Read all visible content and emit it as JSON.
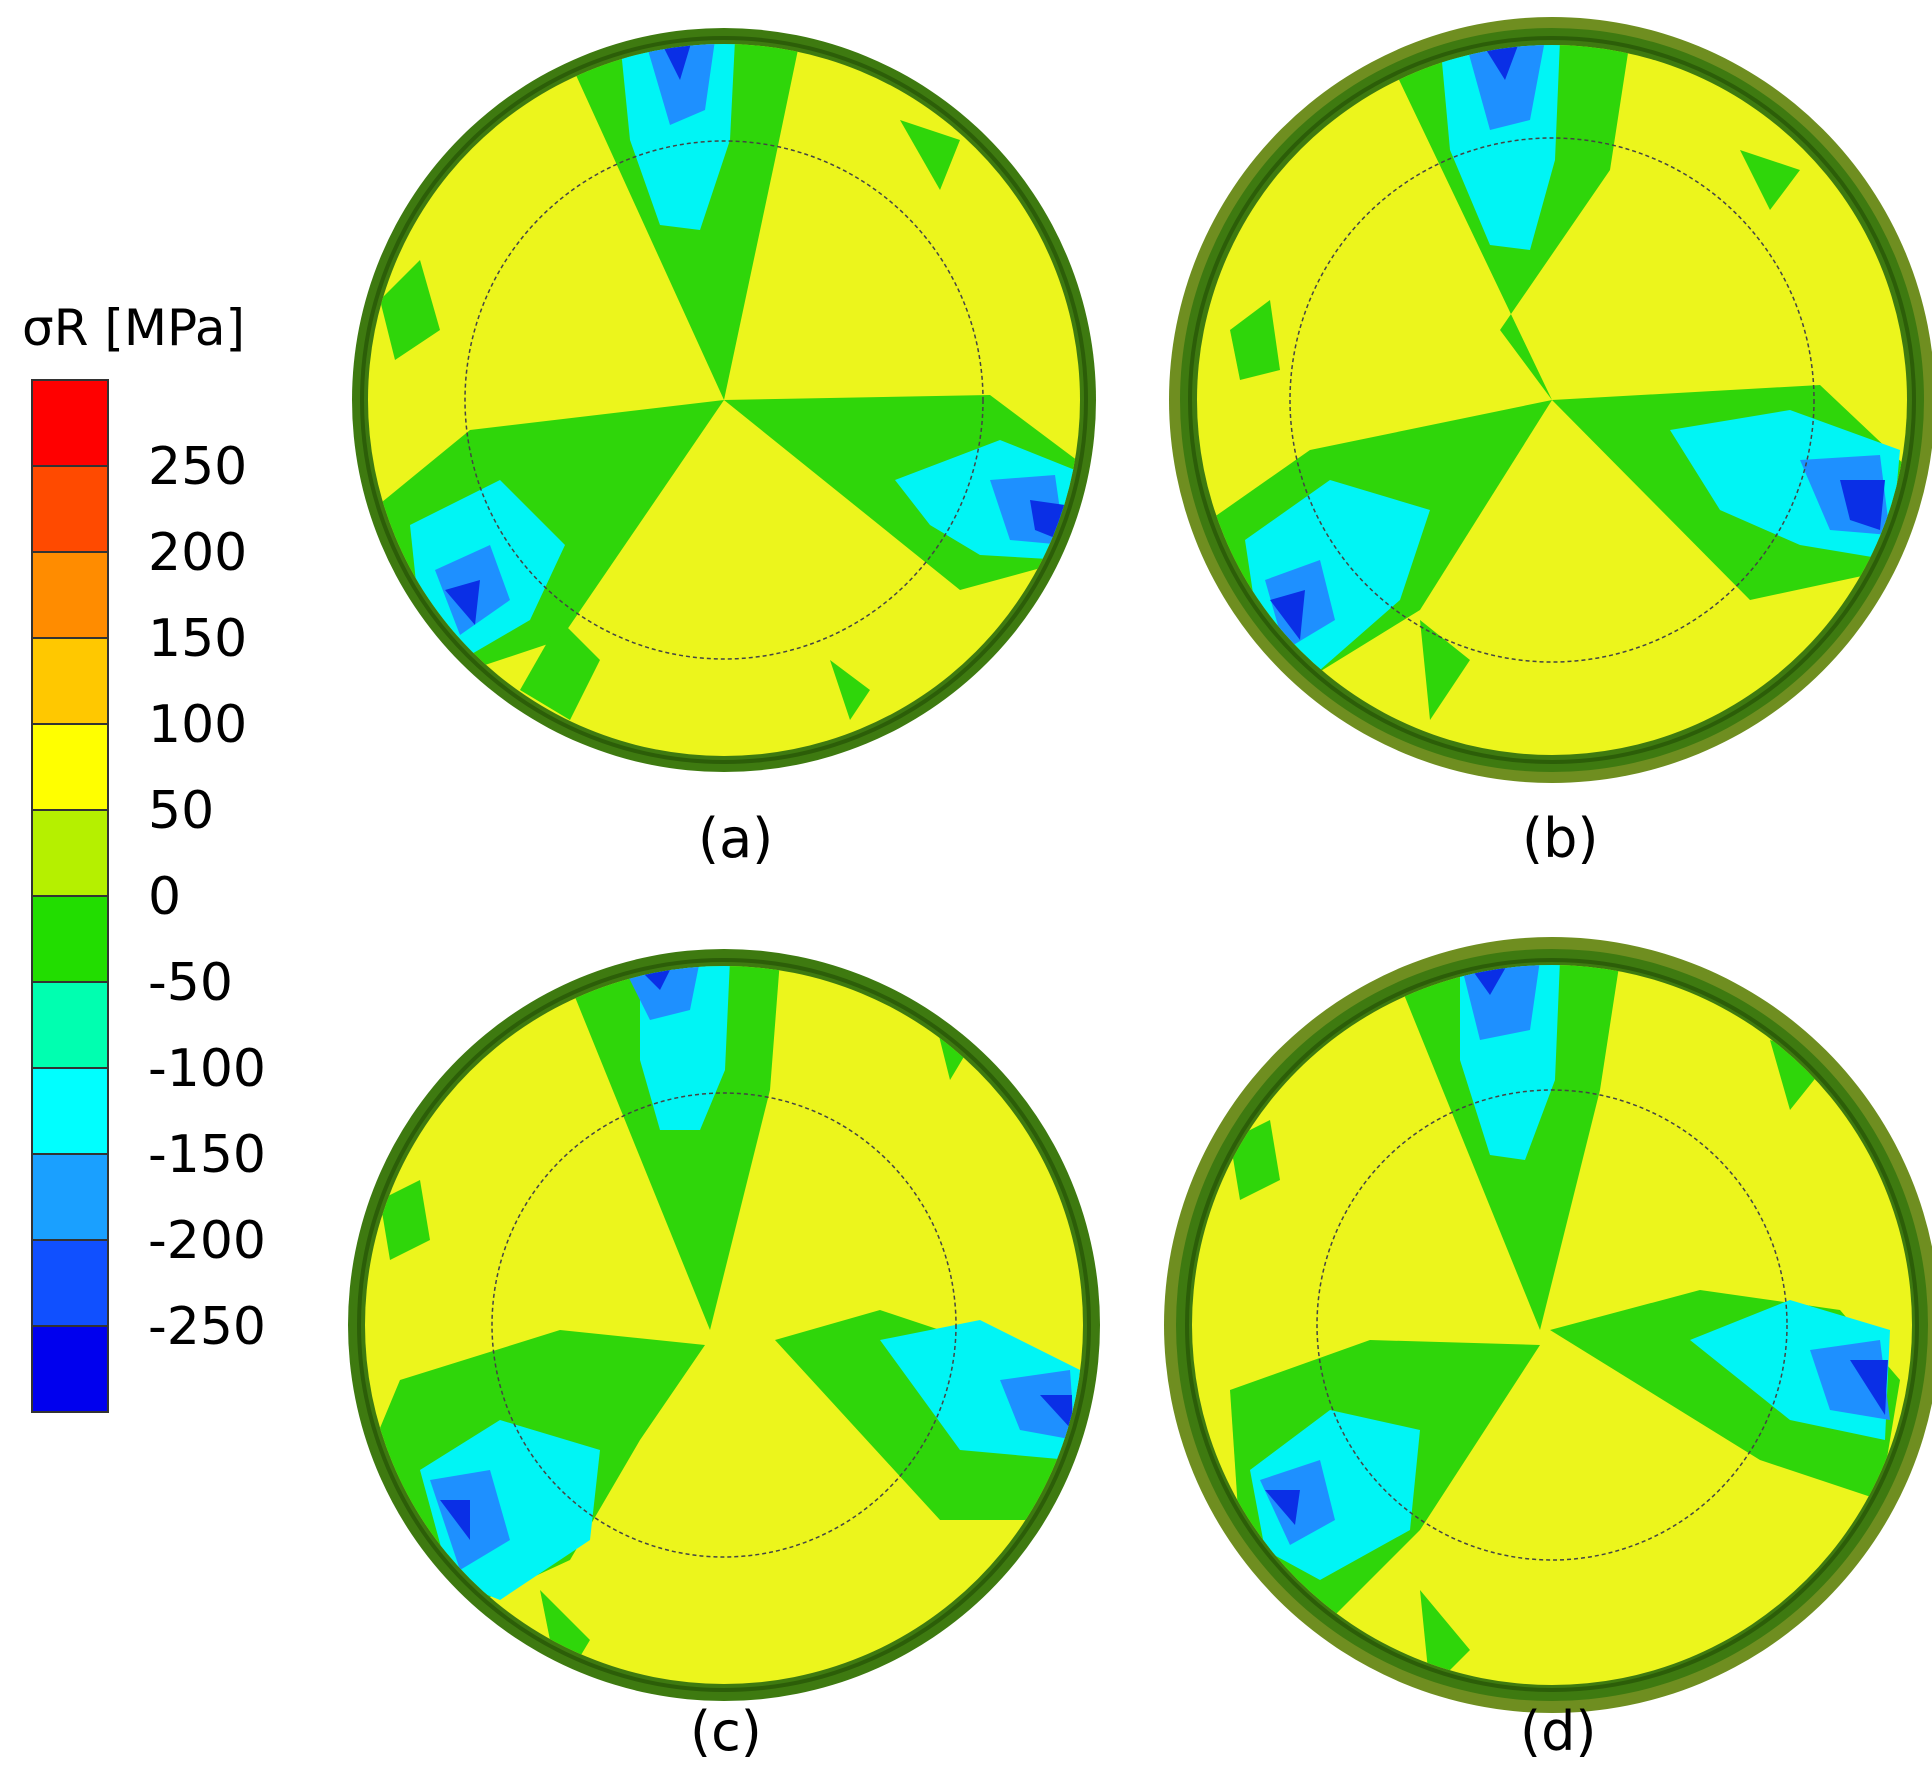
{
  "legend": {
    "title": "σR [MPa]",
    "bands": [
      {
        "color": "#ff0000"
      },
      {
        "color": "#ff4a00"
      },
      {
        "color": "#ff8c00"
      },
      {
        "color": "#ffc800"
      },
      {
        "color": "#ffff00"
      },
      {
        "color": "#b5f000"
      },
      {
        "color": "#22dd00"
      },
      {
        "color": "#00ffb0"
      },
      {
        "color": "#00ffff"
      },
      {
        "color": "#1aa0ff"
      },
      {
        "color": "#1050ff"
      },
      {
        "color": "#0000ee"
      }
    ],
    "ticks": [
      "250",
      "200",
      "150",
      "100",
      "50",
      "0",
      "-50",
      "-100",
      "-150",
      "-200",
      "-250"
    ]
  },
  "panels": [
    {
      "caption": "(a)"
    },
    {
      "caption": "(b)"
    },
    {
      "caption": "(c)"
    },
    {
      "caption": "(d)"
    }
  ],
  "colors": {
    "rim": "#3e7a10",
    "rim_light": "#8aa030",
    "yellow": "#ecf51c",
    "green": "#2fd60a",
    "cyan": "#00f5f5",
    "blue_mid": "#1e90ff",
    "blue_dark": "#0a2fe6"
  }
}
